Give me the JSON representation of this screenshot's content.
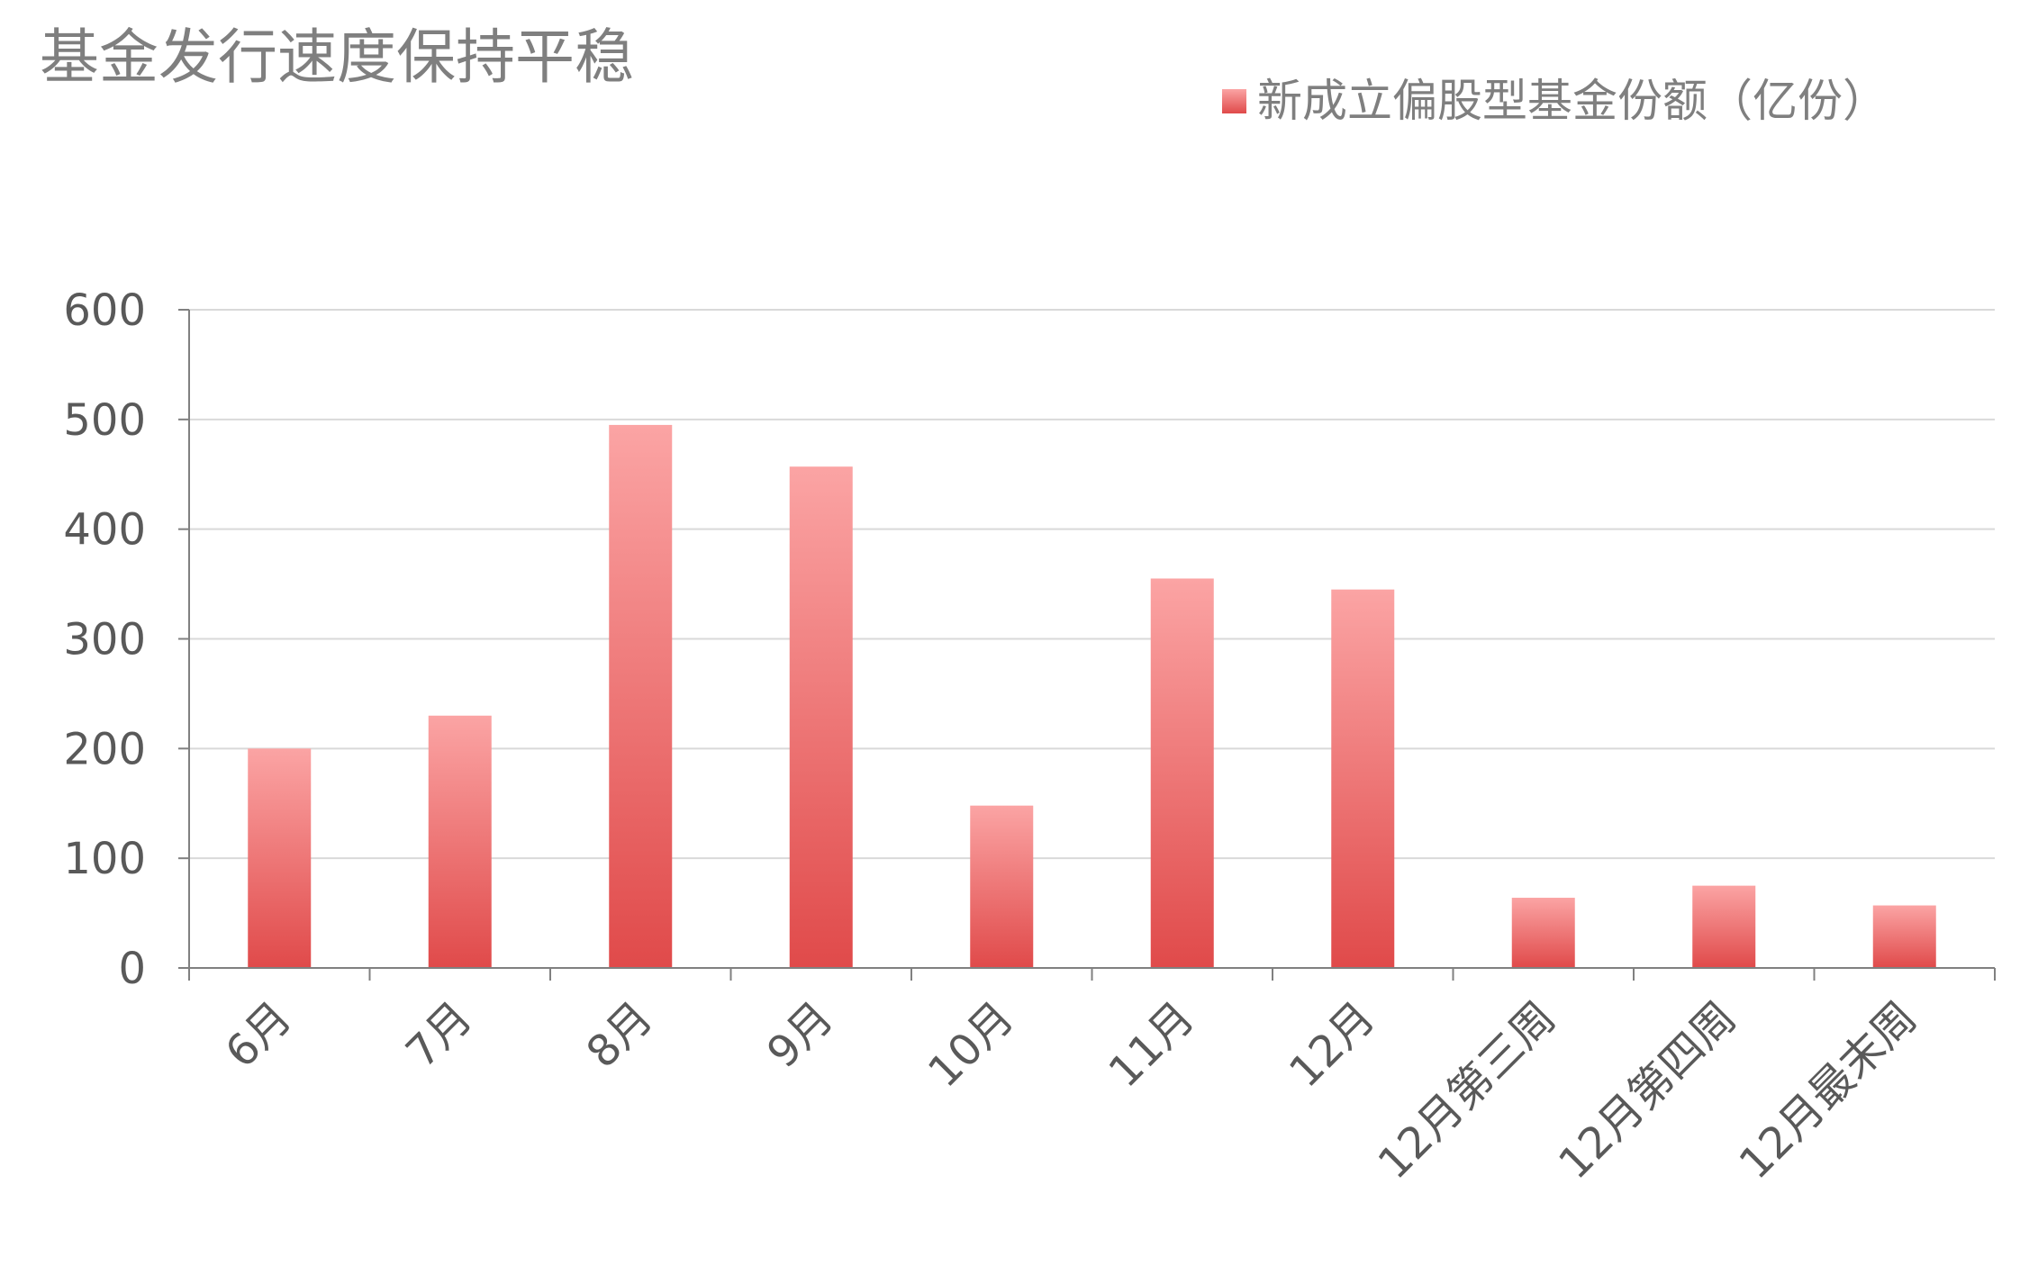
{
  "chart_data": {
    "type": "bar",
    "title": "基金发行速度保持平稳",
    "categories": [
      "6月",
      "7月",
      "8月",
      "9月",
      "10月",
      "11月",
      "12月",
      "12月第三周",
      "12月第四周",
      "12月最末周"
    ],
    "series": [
      {
        "name": "新成立偏股型基金份额（亿份）",
        "values": [
          200,
          230,
          495,
          457,
          148,
          355,
          345,
          64,
          75,
          57
        ]
      }
    ],
    "xlabel": "",
    "ylabel": "",
    "ylim": [
      0,
      600
    ],
    "yticks": [
      "0",
      "100",
      "200",
      "300",
      "400",
      "500",
      "600"
    ],
    "grid": true,
    "legend_position": "top-right",
    "colors": {
      "bar_top": "#fba4a4",
      "bar_bottom": "#e04a4a",
      "grid": "#d9d9d9",
      "axis": "#808080",
      "text": "#595959",
      "title": "#7f7f7f"
    }
  }
}
